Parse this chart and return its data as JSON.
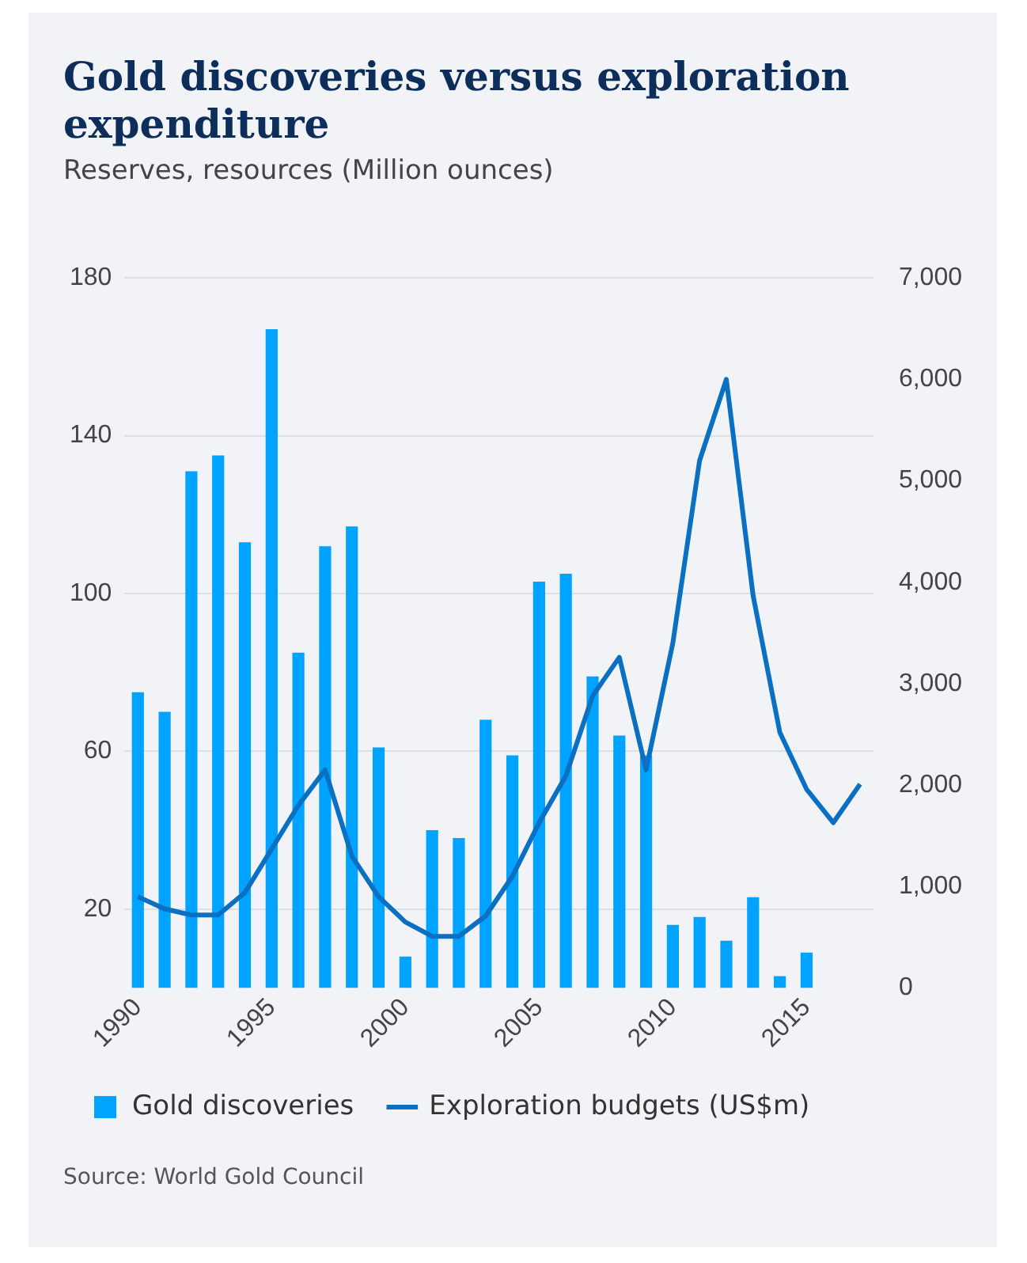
{
  "chart_data": {
    "type": "bar",
    "title": "Gold discoveries versus exploration expenditure",
    "subtitle": "Reserves, resources (Million ounces)",
    "categories": [
      "1990",
      null,
      null,
      null,
      null,
      "1995",
      null,
      null,
      null,
      null,
      "2000",
      null,
      null,
      null,
      null,
      "2005",
      null,
      null,
      null,
      null,
      "2010",
      null,
      null,
      null,
      null,
      "2015",
      null,
      null
    ],
    "series": [
      {
        "name": "Gold discoveries",
        "color": "#00a3ff",
        "values": [
          75,
          70,
          131,
          135,
          113,
          167,
          85,
          112,
          117,
          61,
          8,
          40,
          38,
          68,
          59,
          103,
          105,
          79,
          64,
          59,
          16,
          18,
          12,
          23,
          3,
          9,
          null,
          null
        ]
      },
      {
        "name": "Exploration budgets (US$m)",
        "type": "line",
        "axis": "y2",
        "color": "#0b6fc2",
        "values": [
          900,
          780,
          720,
          720,
          940,
          1370,
          1800,
          2150,
          1300,
          900,
          650,
          510,
          510,
          710,
          1100,
          1630,
          2090,
          2880,
          3260,
          2150,
          3400,
          5200,
          6000,
          3870,
          2520,
          1960,
          1630,
          2010
        ]
      }
    ],
    "ylim": [
      0,
      180
    ],
    "yticks": [
      20,
      60,
      100,
      140,
      180
    ],
    "y2lim": [
      0,
      7000
    ],
    "y2ticks": [
      {
        "value": 0,
        "label": "0"
      },
      {
        "value": 1000,
        "label": "1,000"
      },
      {
        "value": 2000,
        "label": "2,000"
      },
      {
        "value": 3000,
        "label": "3,000"
      },
      {
        "value": 4000,
        "label": "4,000"
      },
      {
        "value": 5000,
        "label": "5,000"
      },
      {
        "value": 6000,
        "label": "6,000"
      },
      {
        "value": 7000,
        "label": "7,000"
      }
    ],
    "grid": "y",
    "legend": "bottom",
    "marker": "none",
    "line_style": "solid",
    "annotations": [
      "Source: World Gold Council"
    ]
  }
}
